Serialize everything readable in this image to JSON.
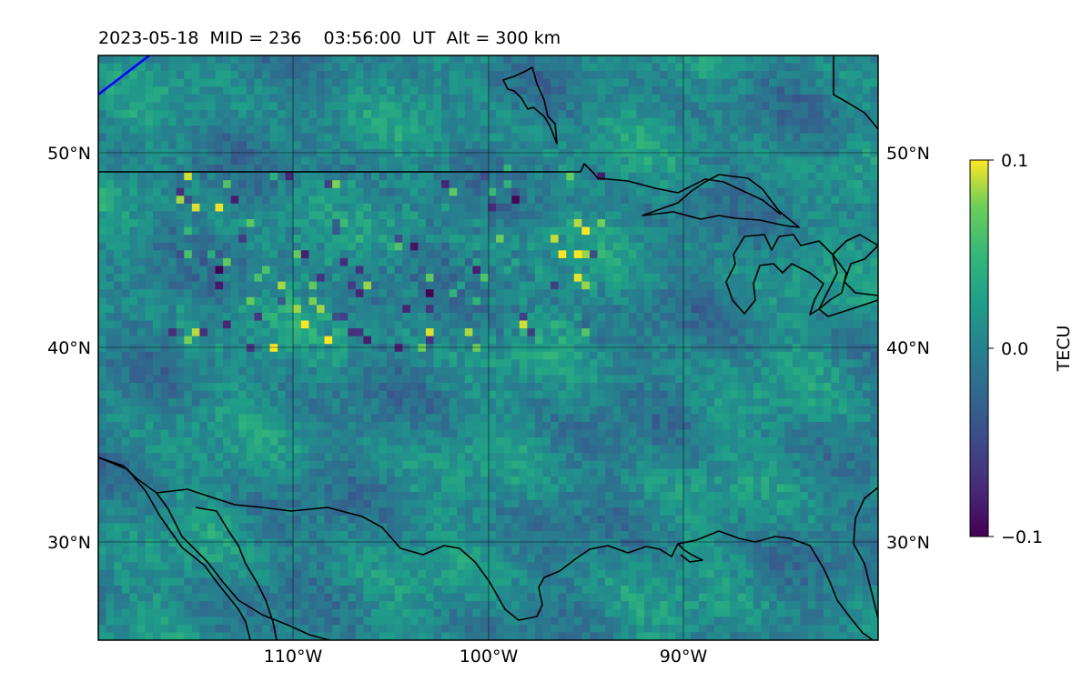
{
  "figure": {
    "title": "2023-05-18  MID = 236    03:56:00  UT  Alt = 300 km"
  },
  "map": {
    "lon_range": [
      -120,
      -80
    ],
    "lat_range": [
      25,
      55
    ],
    "lon_ticks": [
      {
        "value": -110,
        "label": "110°W"
      },
      {
        "value": -100,
        "label": "100°W"
      },
      {
        "value": -90,
        "label": "90°W"
      }
    ],
    "lat_ticks": [
      {
        "value": 50,
        "label": "50°N"
      },
      {
        "value": 40,
        "label": "40°N"
      },
      {
        "value": 30,
        "label": "30°N"
      }
    ],
    "gridlines": true,
    "colormap": [
      "#440154",
      "#3b528b",
      "#21918c",
      "#5ec962",
      "#fde725"
    ],
    "coastline_color": "#000000",
    "terminator_color": "#0000ff",
    "field_mean": 0.0
  },
  "colorbar": {
    "label": "TECU",
    "min": -0.1,
    "max": 0.1,
    "ticks": [
      {
        "value": 0.1,
        "label": "0.1"
      },
      {
        "value": 0.0,
        "label": "0.0"
      },
      {
        "value": -0.1,
        "label": "−0.1"
      }
    ]
  }
}
